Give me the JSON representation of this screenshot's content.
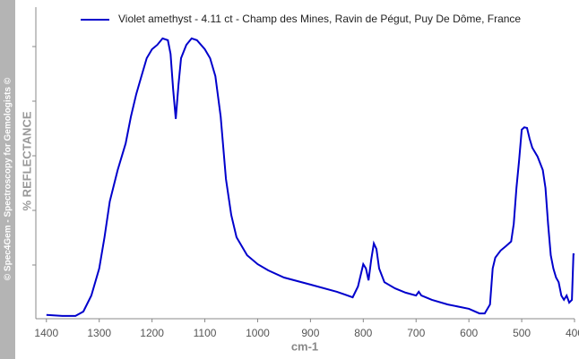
{
  "chart_data": {
    "type": "line",
    "watermark": "© Spec4Gem - Spectroscopy for Gemologists ©",
    "xlabel": "cm-1",
    "ylabel": "% REFLECTANCE",
    "xlim": [
      1420,
      400
    ],
    "xticks": [
      1400,
      1300,
      1200,
      1100,
      1000,
      900,
      800,
      700,
      600,
      500,
      400
    ],
    "ylim": [
      0,
      100
    ],
    "x": [
      1400,
      1370,
      1345,
      1330,
      1315,
      1300,
      1290,
      1280,
      1265,
      1250,
      1240,
      1230,
      1220,
      1210,
      1200,
      1190,
      1180,
      1170,
      1165,
      1160,
      1155,
      1150,
      1145,
      1135,
      1125,
      1115,
      1100,
      1090,
      1080,
      1070,
      1060,
      1050,
      1040,
      1020,
      1000,
      980,
      950,
      900,
      850,
      820,
      810,
      800,
      795,
      790,
      785,
      780,
      775,
      770,
      760,
      740,
      720,
      700,
      695,
      690,
      670,
      640,
      600,
      580,
      570,
      560,
      555,
      550,
      540,
      530,
      520,
      515,
      510,
      505,
      500,
      495,
      490,
      485,
      480,
      470,
      460,
      455,
      450,
      445,
      440,
      435,
      430,
      425,
      420,
      415,
      410,
      405,
      402,
      400
    ],
    "series": [
      {
        "name": "Violet amethyst - 4.11 ct - Champ des Mines, Ravin de Pégut, Puy De Dôme, France",
        "color": "#0000cc",
        "values": [
          1.2,
          0.9,
          0.9,
          2.3,
          7.5,
          16.2,
          26.3,
          37.9,
          48.0,
          56.6,
          65.3,
          72.5,
          78.3,
          84.1,
          87.0,
          88.4,
          90.5,
          89.9,
          85.5,
          74.0,
          64.5,
          75.4,
          84.1,
          88.4,
          90.5,
          89.9,
          87.0,
          84.1,
          78.3,
          65.3,
          45.1,
          33.5,
          26.3,
          20.5,
          17.6,
          15.6,
          13.3,
          11.0,
          8.7,
          6.9,
          10.4,
          17.6,
          16.2,
          12.4,
          19.1,
          24.3,
          22.5,
          16.2,
          11.8,
          9.8,
          8.4,
          7.5,
          8.7,
          7.5,
          6.1,
          4.6,
          3.2,
          1.7,
          1.7,
          4.6,
          16.2,
          19.7,
          22.0,
          23.4,
          24.9,
          30.6,
          42.2,
          50.9,
          61.0,
          61.8,
          61.6,
          58.1,
          55.2,
          52.3,
          48.0,
          42.2,
          30.6,
          20.5,
          16.2,
          13.3,
          11.8,
          7.5,
          6.1,
          7.5,
          5.2,
          6.1,
          20.8,
          20.8
        ]
      }
    ]
  }
}
